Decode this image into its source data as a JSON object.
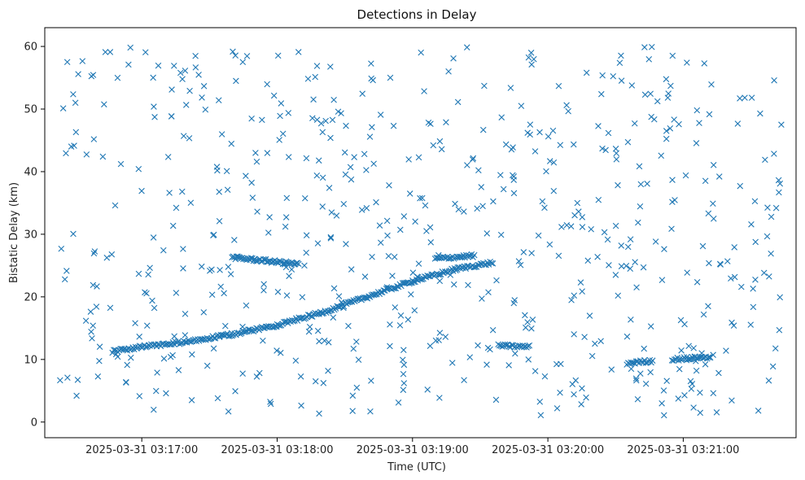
{
  "chart_data": {
    "type": "scatter",
    "title": "Detections in Delay",
    "xlabel": "Time (UTC)",
    "ylabel": "Bistatic Delay (km)",
    "marker": "x",
    "color": "#1f77b4",
    "grid": false,
    "xlim": [
      "2025-03-31 03:16:17",
      "2025-03-31 03:21:50"
    ],
    "ylim": [
      -2.5,
      63
    ],
    "x_ticks": [
      "2025-03-31 03:17:00",
      "2025-03-31 03:18:00",
      "2025-03-31 03:19:00",
      "2025-03-31 03:20:00",
      "2025-03-31 03:21:00"
    ],
    "y_ticks": [
      0,
      10,
      20,
      30,
      40,
      50,
      60
    ],
    "series": [
      {
        "description_only_for_reading": "",
        "tracks": [
          {
            "x": [
              "2025-03-31 03:16:47",
              "2025-03-31 03:17:00",
              "2025-03-31 03:17:20",
              "2025-03-31 03:17:40",
              "2025-03-31 03:18:00",
              "2025-03-31 03:18:20",
              "2025-03-31 03:18:40",
              "2025-03-31 03:19:00",
              "2025-03-31 03:19:20",
              "2025-03-31 03:19:36"
            ],
            "y": [
              11.3,
              12.0,
              12.8,
              14.0,
              15.5,
              17.5,
              20.0,
              22.5,
              24.5,
              25.5
            ],
            "step_seconds": 0.6
          },
          {
            "x": [
              "2025-03-31 03:17:40",
              "2025-03-31 03:18:10"
            ],
            "y": [
              26.3,
              25.2
            ],
            "step_seconds": 0.5
          },
          {
            "x": [
              "2025-03-31 03:19:10",
              "2025-03-31 03:19:28"
            ],
            "y": [
              26.1,
              26.6
            ],
            "step_seconds": 0.6
          },
          {
            "x": [
              "2025-03-31 03:19:38",
              "2025-03-31 03:19:52"
            ],
            "y": [
              12.2,
              12.0
            ],
            "step_seconds": 0.6
          },
          {
            "x": [
              "2025-03-31 03:20:35",
              "2025-03-31 03:20:47"
            ],
            "y": [
              9.4,
              9.8
            ],
            "step_seconds": 0.6
          },
          {
            "x": [
              "2025-03-31 03:20:55",
              "2025-03-31 03:21:12"
            ],
            "y": [
              10.0,
              10.4
            ],
            "step_seconds": 0.6
          }
        ]
      }
    ]
  }
}
